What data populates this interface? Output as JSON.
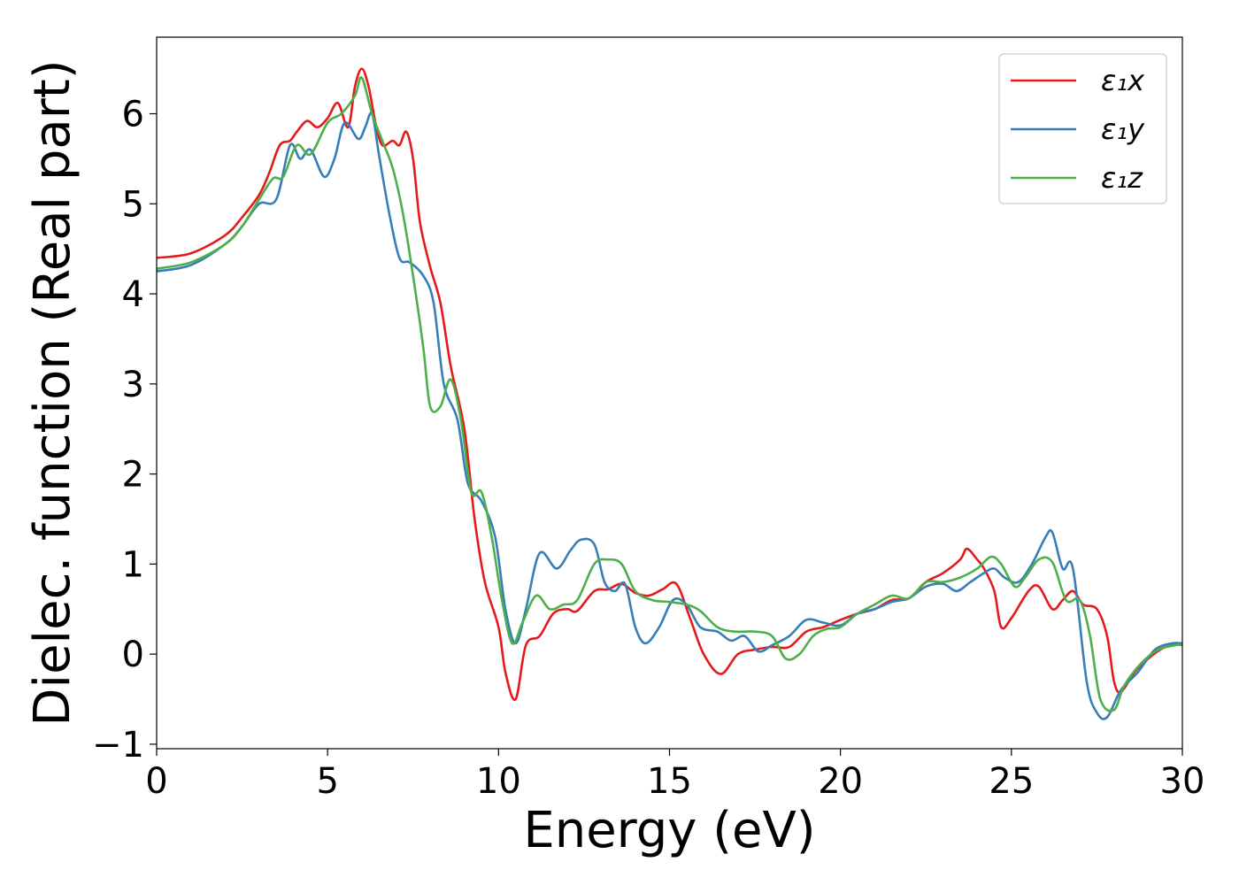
{
  "chart_data": {
    "type": "line",
    "title": "",
    "xlabel": "Energy (eV)",
    "ylabel": "Dielec. function (Real part)",
    "xlim": [
      0,
      30
    ],
    "ylim": [
      -1.05,
      6.85
    ],
    "xticks": [
      0,
      5,
      10,
      15,
      20,
      25,
      30
    ],
    "xtick_labels": [
      "0",
      "5",
      "10",
      "15",
      "20",
      "25",
      "30"
    ],
    "yticks": [
      -1,
      0,
      1,
      2,
      3,
      4,
      5,
      6
    ],
    "ytick_labels": [
      "−1",
      "0",
      "1",
      "2",
      "3",
      "4",
      "5",
      "6"
    ],
    "grid": false,
    "legend_position": "top-right",
    "series": [
      {
        "name": "ε₁x",
        "color": "#e41a1c",
        "points": [
          [
            0,
            4.4
          ],
          [
            1,
            4.45
          ],
          [
            2,
            4.65
          ],
          [
            2.5,
            4.85
          ],
          [
            3,
            5.1
          ],
          [
            3.3,
            5.35
          ],
          [
            3.6,
            5.65
          ],
          [
            3.9,
            5.7
          ],
          [
            4.1,
            5.8
          ],
          [
            4.4,
            5.92
          ],
          [
            4.7,
            5.85
          ],
          [
            5,
            5.95
          ],
          [
            5.3,
            6.12
          ],
          [
            5.6,
            5.85
          ],
          [
            5.8,
            6.3
          ],
          [
            6,
            6.5
          ],
          [
            6.2,
            6.3
          ],
          [
            6.4,
            5.9
          ],
          [
            6.6,
            5.65
          ],
          [
            6.9,
            5.7
          ],
          [
            7.1,
            5.65
          ],
          [
            7.3,
            5.8
          ],
          [
            7.5,
            5.5
          ],
          [
            7.7,
            4.8
          ],
          [
            8,
            4.3
          ],
          [
            8.3,
            3.9
          ],
          [
            8.6,
            3.2
          ],
          [
            9,
            2.5
          ],
          [
            9.3,
            1.5
          ],
          [
            9.6,
            0.8
          ],
          [
            10,
            0.3
          ],
          [
            10.2,
            -0.2
          ],
          [
            10.5,
            -0.5
          ],
          [
            10.8,
            0.1
          ],
          [
            11.2,
            0.2
          ],
          [
            11.6,
            0.45
          ],
          [
            12,
            0.5
          ],
          [
            12.3,
            0.48
          ],
          [
            12.8,
            0.7
          ],
          [
            13.2,
            0.72
          ],
          [
            13.6,
            0.78
          ],
          [
            14,
            0.68
          ],
          [
            14.4,
            0.65
          ],
          [
            14.8,
            0.72
          ],
          [
            15.2,
            0.78
          ],
          [
            15.6,
            0.4
          ],
          [
            16,
            0.0
          ],
          [
            16.5,
            -0.22
          ],
          [
            17,
            0.0
          ],
          [
            17.5,
            0.05
          ],
          [
            18,
            0.08
          ],
          [
            18.5,
            0.08
          ],
          [
            19,
            0.25
          ],
          [
            19.5,
            0.3
          ],
          [
            20,
            0.38
          ],
          [
            20.5,
            0.45
          ],
          [
            21,
            0.5
          ],
          [
            21.5,
            0.6
          ],
          [
            22,
            0.62
          ],
          [
            22.5,
            0.8
          ],
          [
            23,
            0.9
          ],
          [
            23.5,
            1.05
          ],
          [
            23.7,
            1.17
          ],
          [
            24,
            1.05
          ],
          [
            24.2,
            0.95
          ],
          [
            24.5,
            0.7
          ],
          [
            24.7,
            0.3
          ],
          [
            25,
            0.4
          ],
          [
            25.5,
            0.7
          ],
          [
            25.8,
            0.75
          ],
          [
            26.2,
            0.5
          ],
          [
            26.5,
            0.6
          ],
          [
            26.8,
            0.7
          ],
          [
            27.1,
            0.55
          ],
          [
            27.5,
            0.5
          ],
          [
            27.8,
            0.2
          ],
          [
            28,
            -0.3
          ],
          [
            28.2,
            -0.42
          ],
          [
            28.6,
            -0.2
          ],
          [
            29,
            -0.05
          ],
          [
            29.5,
            0.08
          ],
          [
            30,
            0.12
          ]
        ]
      },
      {
        "name": "ε₁y",
        "color": "#377eb8",
        "points": [
          [
            0,
            4.25
          ],
          [
            1,
            4.32
          ],
          [
            2,
            4.55
          ],
          [
            2.5,
            4.75
          ],
          [
            3,
            5.0
          ],
          [
            3.5,
            5.05
          ],
          [
            3.9,
            5.65
          ],
          [
            4.2,
            5.5
          ],
          [
            4.5,
            5.6
          ],
          [
            4.9,
            5.3
          ],
          [
            5.2,
            5.5
          ],
          [
            5.5,
            5.9
          ],
          [
            5.9,
            5.72
          ],
          [
            6.1,
            5.85
          ],
          [
            6.3,
            6.0
          ],
          [
            6.5,
            5.55
          ],
          [
            6.8,
            4.9
          ],
          [
            7.1,
            4.4
          ],
          [
            7.4,
            4.35
          ],
          [
            7.8,
            4.2
          ],
          [
            8.1,
            3.9
          ],
          [
            8.4,
            3.0
          ],
          [
            8.8,
            2.6
          ],
          [
            9.1,
            1.9
          ],
          [
            9.5,
            1.7
          ],
          [
            9.9,
            1.3
          ],
          [
            10.2,
            0.5
          ],
          [
            10.5,
            0.12
          ],
          [
            10.8,
            0.5
          ],
          [
            11.2,
            1.12
          ],
          [
            11.7,
            0.95
          ],
          [
            12.1,
            1.15
          ],
          [
            12.4,
            1.27
          ],
          [
            12.8,
            1.22
          ],
          [
            13.1,
            0.8
          ],
          [
            13.4,
            0.7
          ],
          [
            13.7,
            0.78
          ],
          [
            14,
            0.3
          ],
          [
            14.3,
            0.12
          ],
          [
            14.7,
            0.3
          ],
          [
            15.1,
            0.6
          ],
          [
            15.5,
            0.55
          ],
          [
            15.9,
            0.3
          ],
          [
            16.4,
            0.25
          ],
          [
            16.8,
            0.15
          ],
          [
            17.2,
            0.2
          ],
          [
            17.6,
            0.03
          ],
          [
            18,
            0.1
          ],
          [
            18.5,
            0.2
          ],
          [
            19,
            0.38
          ],
          [
            19.5,
            0.35
          ],
          [
            20,
            0.32
          ],
          [
            20.5,
            0.45
          ],
          [
            21,
            0.5
          ],
          [
            21.5,
            0.58
          ],
          [
            22,
            0.62
          ],
          [
            22.5,
            0.75
          ],
          [
            23,
            0.78
          ],
          [
            23.4,
            0.7
          ],
          [
            23.8,
            0.8
          ],
          [
            24.2,
            0.9
          ],
          [
            24.5,
            0.95
          ],
          [
            24.8,
            0.85
          ],
          [
            25.2,
            0.8
          ],
          [
            25.6,
            1.0
          ],
          [
            26,
            1.3
          ],
          [
            26.2,
            1.35
          ],
          [
            26.5,
            0.95
          ],
          [
            26.8,
            0.95
          ],
          [
            27.2,
            -0.3
          ],
          [
            27.5,
            -0.65
          ],
          [
            27.8,
            -0.7
          ],
          [
            28.2,
            -0.4
          ],
          [
            28.7,
            -0.2
          ],
          [
            29.2,
            0.05
          ],
          [
            29.7,
            0.12
          ],
          [
            30,
            0.12
          ]
        ]
      },
      {
        "name": "ε₁z",
        "color": "#4daf4a",
        "points": [
          [
            0,
            4.28
          ],
          [
            1,
            4.35
          ],
          [
            2,
            4.55
          ],
          [
            2.5,
            4.75
          ],
          [
            3,
            5.05
          ],
          [
            3.4,
            5.28
          ],
          [
            3.7,
            5.3
          ],
          [
            4.1,
            5.65
          ],
          [
            4.5,
            5.55
          ],
          [
            5,
            5.9
          ],
          [
            5.4,
            6.0
          ],
          [
            5.8,
            6.2
          ],
          [
            6,
            6.4
          ],
          [
            6.3,
            6.0
          ],
          [
            6.6,
            5.7
          ],
          [
            6.9,
            5.4
          ],
          [
            7.2,
            4.9
          ],
          [
            7.5,
            4.2
          ],
          [
            7.8,
            3.4
          ],
          [
            8,
            2.75
          ],
          [
            8.3,
            2.75
          ],
          [
            8.6,
            3.05
          ],
          [
            8.9,
            2.6
          ],
          [
            9.2,
            1.8
          ],
          [
            9.5,
            1.8
          ],
          [
            9.8,
            1.3
          ],
          [
            10.1,
            0.6
          ],
          [
            10.4,
            0.12
          ],
          [
            10.7,
            0.35
          ],
          [
            11.1,
            0.65
          ],
          [
            11.5,
            0.5
          ],
          [
            11.9,
            0.55
          ],
          [
            12.3,
            0.6
          ],
          [
            12.8,
            1.0
          ],
          [
            13.2,
            1.05
          ],
          [
            13.6,
            1.0
          ],
          [
            14,
            0.7
          ],
          [
            14.5,
            0.6
          ],
          [
            15,
            0.58
          ],
          [
            15.5,
            0.55
          ],
          [
            15.9,
            0.48
          ],
          [
            16.4,
            0.3
          ],
          [
            16.9,
            0.25
          ],
          [
            17.5,
            0.25
          ],
          [
            18,
            0.2
          ],
          [
            18.4,
            -0.05
          ],
          [
            18.8,
            0.0
          ],
          [
            19.2,
            0.2
          ],
          [
            19.6,
            0.28
          ],
          [
            20,
            0.3
          ],
          [
            20.5,
            0.45
          ],
          [
            21,
            0.55
          ],
          [
            21.5,
            0.65
          ],
          [
            22,
            0.62
          ],
          [
            22.5,
            0.8
          ],
          [
            23,
            0.8
          ],
          [
            23.5,
            0.85
          ],
          [
            24,
            0.95
          ],
          [
            24.4,
            1.08
          ],
          [
            24.7,
            1.0
          ],
          [
            25.1,
            0.75
          ],
          [
            25.4,
            0.85
          ],
          [
            25.8,
            1.05
          ],
          [
            26.2,
            1.02
          ],
          [
            26.6,
            0.6
          ],
          [
            27,
            0.6
          ],
          [
            27.3,
            0.2
          ],
          [
            27.6,
            -0.5
          ],
          [
            28,
            -0.62
          ],
          [
            28.3,
            -0.35
          ],
          [
            28.8,
            -0.1
          ],
          [
            29.3,
            0.05
          ],
          [
            29.8,
            0.1
          ],
          [
            30,
            0.1
          ]
        ]
      }
    ]
  }
}
